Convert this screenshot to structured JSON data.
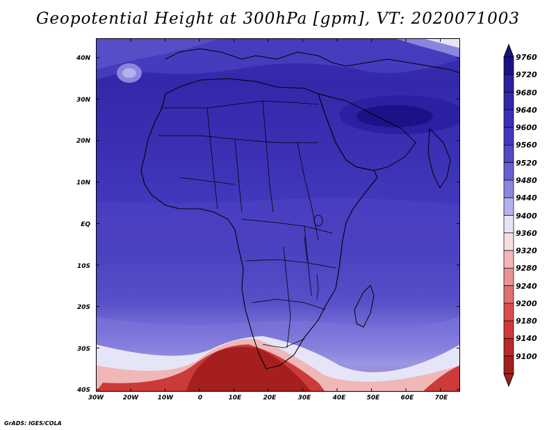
{
  "title": "Geopotential Height at 300hPa [gpm], VT: 2020071003",
  "credit": "GrADS: IGES/COLA",
  "lat_labels": [
    "40N",
    "30N",
    "20N",
    "10N",
    "EQ",
    "10S",
    "20S",
    "30S",
    "40S"
  ],
  "lon_labels": [
    "30W",
    "20W",
    "10W",
    "0",
    "10E",
    "20E",
    "30E",
    "40E",
    "50E",
    "60E",
    "70E"
  ],
  "colorbar": {
    "levels": [
      "9760",
      "9720",
      "9680",
      "9640",
      "9600",
      "9560",
      "9520",
      "9480",
      "9440",
      "9400",
      "9360",
      "9320",
      "9280",
      "9240",
      "9200",
      "9180",
      "9140",
      "9100"
    ],
    "colors": [
      "#1a1185",
      "#2a1fa0",
      "#3326a8",
      "#3b30b4",
      "#4339bd",
      "#5249c4",
      "#6660cf",
      "#8b86dd",
      "#b4b1ec",
      "#e6e5f8",
      "#f8dede",
      "#f0b7b7",
      "#e89494",
      "#e07070",
      "#d84f4f",
      "#cc3a3a",
      "#b82a2a",
      "#a01f1f"
    ]
  },
  "colors": {
    "deep_red": "#a51f1f",
    "blue_main": "#3d33b5"
  }
}
